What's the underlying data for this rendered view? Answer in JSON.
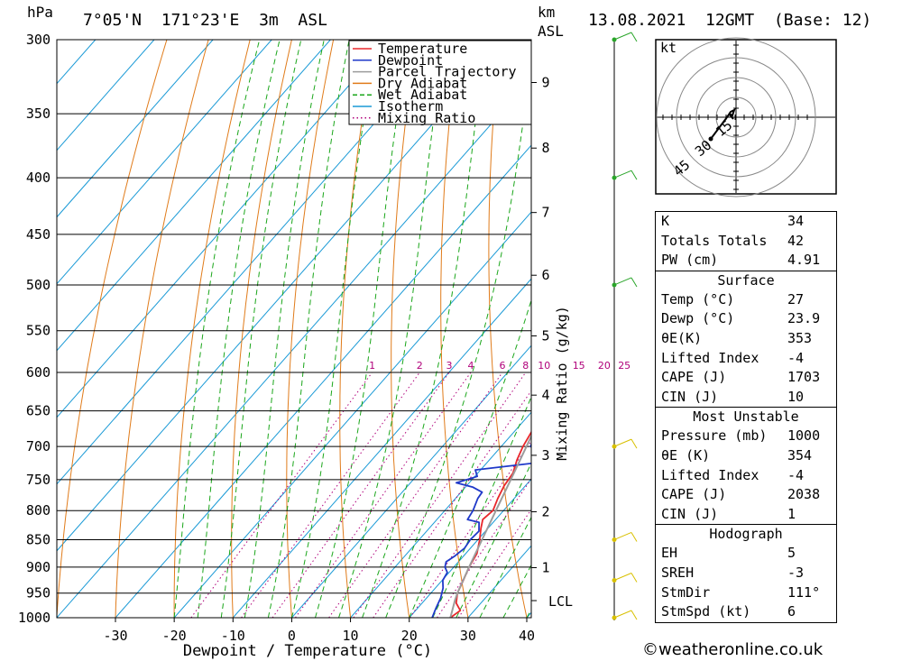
{
  "header": {
    "pressure_unit": "hPa",
    "location": "7°05'N  171°23'E  3m  ASL",
    "km_label": "km",
    "asl_label": "ASL",
    "datetime": "13.08.2021  12GMT  (Base: 12)"
  },
  "legend": [
    {
      "label": "Temperature",
      "color": "#e8262b",
      "dash": "solid"
    },
    {
      "label": "Dewpoint",
      "color": "#1f39c9",
      "dash": "solid"
    },
    {
      "label": "Parcel Trajectory",
      "color": "#9c9c9c",
      "dash": "solid"
    },
    {
      "label": "Dry Adiabat",
      "color": "#e07b1a",
      "dash": "solid"
    },
    {
      "label": "Wet Adiabat",
      "color": "#1aa61a",
      "dash": "dashed"
    },
    {
      "label": "Isotherm",
      "color": "#1a9ad6",
      "dash": "solid"
    },
    {
      "label": "Mixing Ratio",
      "color": "#b0007a",
      "dash": "dotted"
    }
  ],
  "chart_data": {
    "type": "line",
    "xlabel": "Dewpoint / Temperature (°C)",
    "mixing_ratio_axis_label": "Mixing Ratio (g/kg)",
    "pressure_levels": [
      300,
      350,
      400,
      450,
      500,
      550,
      600,
      650,
      700,
      750,
      800,
      850,
      900,
      950,
      1000
    ],
    "x_ticks": [
      -30,
      -20,
      -10,
      0,
      10,
      20,
      30,
      40
    ],
    "xlim": [
      -40,
      40
    ],
    "ylim": [
      1000,
      300
    ],
    "height_km_ticks": [
      {
        "km": "1",
        "p": 901
      },
      {
        "km": "2",
        "p": 802
      },
      {
        "km": "3",
        "p": 713
      },
      {
        "km": "4",
        "p": 629
      },
      {
        "km": "5",
        "p": 556
      },
      {
        "km": "6",
        "p": 490
      },
      {
        "km": "7",
        "p": 430
      },
      {
        "km": "8",
        "p": 376
      },
      {
        "km": "9",
        "p": 328
      }
    ],
    "lcl": {
      "label": "LCL",
      "p": 965
    },
    "mixing_ratio_labels": [
      "1",
      "2",
      "3",
      "4",
      "6",
      "8",
      "10",
      "15",
      "20",
      "25"
    ],
    "skew_deg_per_pixel_per_log": 0,
    "series": [
      {
        "name": "Temperature",
        "color": "#e8262b",
        "points": [
          [
            1000,
            27.0
          ],
          [
            985,
            27.6
          ],
          [
            970,
            25.8
          ],
          [
            950,
            24.5
          ],
          [
            925,
            23.6
          ],
          [
            900,
            22.6
          ],
          [
            875,
            21.9
          ],
          [
            850,
            20.3
          ],
          [
            830,
            18.8
          ],
          [
            815,
            17.8
          ],
          [
            800,
            18.2
          ],
          [
            780,
            17.2
          ],
          [
            760,
            16.4
          ],
          [
            740,
            16.0
          ],
          [
            720,
            14.7
          ],
          [
            700,
            13.7
          ],
          [
            680,
            13.0
          ],
          [
            650,
            11.6
          ],
          [
            620,
            10.0
          ],
          [
            600,
            9.0
          ],
          [
            575,
            7.6
          ],
          [
            550,
            5.4
          ],
          [
            530,
            4.4
          ],
          [
            500,
            2.7
          ],
          [
            480,
            1.2
          ],
          [
            460,
            -0.5
          ],
          [
            450,
            -1.4
          ],
          [
            430,
            -3.6
          ],
          [
            420,
            -4.6
          ],
          [
            400,
            -7.0
          ],
          [
            380,
            -9.6
          ],
          [
            350,
            -14.2
          ],
          [
            330,
            -17.8
          ],
          [
            300,
            -23.6
          ]
        ]
      },
      {
        "name": "Dewpoint",
        "color": "#1f39c9",
        "points": [
          [
            1000,
            23.9
          ],
          [
            980,
            23.1
          ],
          [
            960,
            22.4
          ],
          [
            940,
            21.3
          ],
          [
            925,
            20.1
          ],
          [
            910,
            19.7
          ],
          [
            900,
            18.5
          ],
          [
            890,
            17.9
          ],
          [
            880,
            18.5
          ],
          [
            865,
            19.0
          ],
          [
            850,
            18.7
          ],
          [
            835,
            18.9
          ],
          [
            820,
            17.6
          ],
          [
            815,
            15.2
          ],
          [
            800,
            14.8
          ],
          [
            780,
            13.8
          ],
          [
            770,
            13.6
          ],
          [
            762,
            11.3
          ],
          [
            755,
            7.8
          ],
          [
            745,
            10.4
          ],
          [
            735,
            9.1
          ],
          [
            725,
            17.7
          ],
          [
            715,
            17.3
          ],
          [
            705,
            16.2
          ],
          [
            700,
            15.0
          ],
          [
            690,
            14.4
          ],
          [
            650,
            12.1
          ],
          [
            600,
            10.2
          ],
          [
            560,
            9.0
          ],
          [
            545,
            7.0
          ],
          [
            535,
            7.2
          ],
          [
            525,
            9.2
          ],
          [
            515,
            5.4
          ],
          [
            510,
            -1.0
          ],
          [
            500,
            -1.6
          ],
          [
            495,
            7.2
          ],
          [
            490,
            -1.8
          ],
          [
            485,
            7.0
          ],
          [
            480,
            -2.2
          ],
          [
            475,
            5.4
          ],
          [
            470,
            -0.6
          ],
          [
            462,
            1.0
          ],
          [
            458,
            -5.6
          ],
          [
            455,
            0.2
          ],
          [
            450,
            -7.0
          ],
          [
            445,
            0.8
          ],
          [
            440,
            -6.0
          ],
          [
            430,
            -2.0
          ],
          [
            420,
            -8.0
          ],
          [
            410,
            -6.0
          ],
          [
            400,
            -10.8
          ],
          [
            390,
            -3.6
          ],
          [
            370,
            -6.0
          ],
          [
            350,
            -10.0
          ],
          [
            330,
            -11.6
          ],
          [
            315,
            -13.4
          ],
          [
            300,
            -15.0
          ]
        ]
      },
      {
        "name": "Parcel Trajectory",
        "color": "#9c9c9c",
        "points": [
          [
            1000,
            27.0
          ],
          [
            965,
            25.2
          ],
          [
            950,
            24.5
          ],
          [
            900,
            22.6
          ],
          [
            850,
            20.7
          ],
          [
            800,
            18.7
          ],
          [
            750,
            16.6
          ],
          [
            700,
            14.3
          ],
          [
            650,
            11.8
          ],
          [
            600,
            9.1
          ],
          [
            550,
            6.1
          ],
          [
            500,
            2.7
          ],
          [
            450,
            -1.3
          ],
          [
            400,
            -6.0
          ],
          [
            370,
            -9.4
          ]
        ]
      }
    ]
  },
  "hodograph": {
    "unit": "kt",
    "ring_labels": [
      "15",
      "30",
      "45"
    ]
  },
  "indices": {
    "k_label": "K",
    "k_value": "34",
    "tt_label": "Totals Totals",
    "tt_value": "42",
    "pw_label": "PW (cm)",
    "pw_value": "4.91"
  },
  "surface": {
    "title": "Surface",
    "temp_label": "Temp (°C)",
    "temp_value": "27",
    "dewp_label": "Dewp (°C)",
    "dewp_value": "23.9",
    "theta_label": "θE(K)",
    "theta_value": "353",
    "li_label": "Lifted Index",
    "li_value": "-4",
    "cape_label": "CAPE (J)",
    "cape_value": "1703",
    "cin_label": "CIN (J)",
    "cin_value": "10"
  },
  "most_unstable": {
    "title": "Most Unstable",
    "pressure_label": "Pressure (mb)",
    "pressure_value": "1000",
    "theta_label": "θE (K)",
    "theta_value": "354",
    "li_label": "Lifted Index",
    "li_value": "-4",
    "cape_label": "CAPE (J)",
    "cape_value": "2038",
    "cin_label": "CIN (J)",
    "cin_value": "1"
  },
  "hodo_table": {
    "title": "Hodograph",
    "eh_label": "EH",
    "eh_value": "5",
    "srh_label": "SREH",
    "srh_value": "-3",
    "dir_label": "StmDir",
    "dir_value": "111°",
    "spd_label": "StmSpd (kt)",
    "spd_value": "6"
  },
  "footer": "©weatheronline.co.uk"
}
